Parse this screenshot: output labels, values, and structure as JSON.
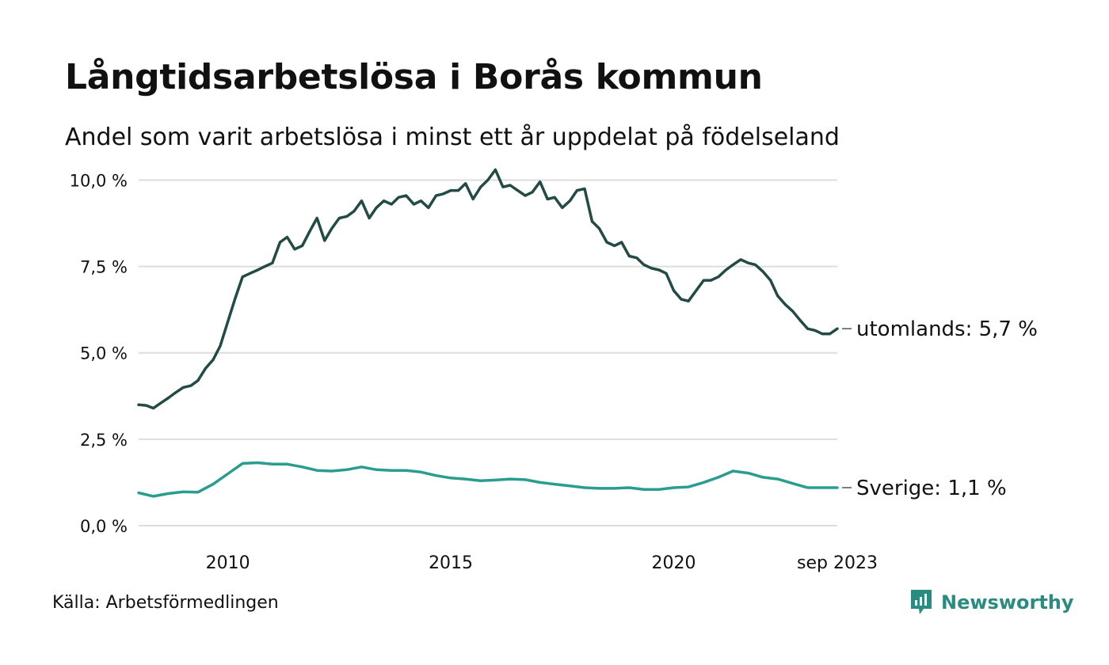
{
  "header": {
    "title": "Långtidsarbetslösa i Borås kommun",
    "subtitle": "Andel som varit arbetslösa i minst ett år uppdelat på födelseland"
  },
  "footer": {
    "source": "Källa: Arbetsförmedlingen",
    "brand": "Newsworthy",
    "brand_icon": "newsworthy-logo-icon"
  },
  "colors": {
    "utomlands": "#234b45",
    "sverige": "#2a9d8f",
    "grid": "#dddddd",
    "text": "#111111"
  },
  "chart_data": {
    "type": "line",
    "title": "Långtidsarbetslösa i Borås kommun",
    "xlabel": "",
    "ylabel": "",
    "x_range": [
      2008.0,
      2023.667
    ],
    "ylim": [
      0,
      10.4
    ],
    "y_ticks": [
      {
        "value": 0,
        "label": "0,0 %"
      },
      {
        "value": 2.5,
        "label": "2,5 %"
      },
      {
        "value": 5,
        "label": "5,0 %"
      },
      {
        "value": 7.5,
        "label": "7,5 %"
      },
      {
        "value": 10,
        "label": "10,0 %"
      }
    ],
    "x_ticks": [
      {
        "value": 2010,
        "label": "2010"
      },
      {
        "value": 2015,
        "label": "2015"
      },
      {
        "value": 2020,
        "label": "2020"
      },
      {
        "value": 2023.667,
        "label": "sep 2023"
      }
    ],
    "grid": true,
    "series": [
      {
        "name": "utomlands",
        "end_label": "utomlands: 5,7 %",
        "color": "#234b45",
        "points": [
          [
            2008.0,
            3.5
          ],
          [
            2008.17,
            3.48
          ],
          [
            2008.33,
            3.4
          ],
          [
            2008.5,
            3.55
          ],
          [
            2008.67,
            3.7
          ],
          [
            2008.83,
            3.85
          ],
          [
            2009.0,
            4.0
          ],
          [
            2009.17,
            4.05
          ],
          [
            2009.33,
            4.2
          ],
          [
            2009.5,
            4.55
          ],
          [
            2009.67,
            4.8
          ],
          [
            2009.83,
            5.2
          ],
          [
            2010.0,
            5.9
          ],
          [
            2010.17,
            6.6
          ],
          [
            2010.33,
            7.2
          ],
          [
            2010.5,
            7.3
          ],
          [
            2010.67,
            7.4
          ],
          [
            2010.83,
            7.5
          ],
          [
            2011.0,
            7.6
          ],
          [
            2011.17,
            8.2
          ],
          [
            2011.33,
            8.35
          ],
          [
            2011.5,
            8.0
          ],
          [
            2011.67,
            8.1
          ],
          [
            2011.83,
            8.5
          ],
          [
            2012.0,
            8.9
          ],
          [
            2012.17,
            8.25
          ],
          [
            2012.33,
            8.6
          ],
          [
            2012.5,
            8.9
          ],
          [
            2012.67,
            8.95
          ],
          [
            2012.83,
            9.1
          ],
          [
            2013.0,
            9.4
          ],
          [
            2013.17,
            8.9
          ],
          [
            2013.33,
            9.2
          ],
          [
            2013.5,
            9.4
          ],
          [
            2013.67,
            9.3
          ],
          [
            2013.83,
            9.5
          ],
          [
            2014.0,
            9.55
          ],
          [
            2014.17,
            9.3
          ],
          [
            2014.33,
            9.4
          ],
          [
            2014.5,
            9.2
          ],
          [
            2014.67,
            9.55
          ],
          [
            2014.83,
            9.6
          ],
          [
            2015.0,
            9.7
          ],
          [
            2015.17,
            9.7
          ],
          [
            2015.33,
            9.9
          ],
          [
            2015.5,
            9.45
          ],
          [
            2015.67,
            9.8
          ],
          [
            2015.83,
            10.0
          ],
          [
            2016.0,
            10.3
          ],
          [
            2016.17,
            9.8
          ],
          [
            2016.33,
            9.85
          ],
          [
            2016.5,
            9.7
          ],
          [
            2016.67,
            9.55
          ],
          [
            2016.83,
            9.65
          ],
          [
            2017.0,
            9.95
          ],
          [
            2017.17,
            9.45
          ],
          [
            2017.33,
            9.5
          ],
          [
            2017.5,
            9.2
          ],
          [
            2017.67,
            9.4
          ],
          [
            2017.83,
            9.7
          ],
          [
            2018.0,
            9.75
          ],
          [
            2018.17,
            8.8
          ],
          [
            2018.33,
            8.6
          ],
          [
            2018.5,
            8.2
          ],
          [
            2018.67,
            8.1
          ],
          [
            2018.83,
            8.2
          ],
          [
            2019.0,
            7.8
          ],
          [
            2019.17,
            7.75
          ],
          [
            2019.33,
            7.55
          ],
          [
            2019.5,
            7.45
          ],
          [
            2019.67,
            7.4
          ],
          [
            2019.83,
            7.3
          ],
          [
            2020.0,
            6.8
          ],
          [
            2020.17,
            6.55
          ],
          [
            2020.33,
            6.5
          ],
          [
            2020.5,
            6.8
          ],
          [
            2020.67,
            7.1
          ],
          [
            2020.83,
            7.1
          ],
          [
            2021.0,
            7.2
          ],
          [
            2021.17,
            7.4
          ],
          [
            2021.33,
            7.55
          ],
          [
            2021.5,
            7.7
          ],
          [
            2021.67,
            7.6
          ],
          [
            2021.83,
            7.55
          ],
          [
            2022.0,
            7.35
          ],
          [
            2022.17,
            7.1
          ],
          [
            2022.33,
            6.65
          ],
          [
            2022.5,
            6.4
          ],
          [
            2022.67,
            6.2
          ],
          [
            2022.83,
            5.95
          ],
          [
            2023.0,
            5.7
          ],
          [
            2023.17,
            5.65
          ],
          [
            2023.33,
            5.55
          ],
          [
            2023.5,
            5.55
          ],
          [
            2023.667,
            5.7
          ]
        ]
      },
      {
        "name": "Sverige",
        "end_label": "Sverige: 1,1 %",
        "color": "#2a9d8f",
        "points": [
          [
            2008.0,
            0.95
          ],
          [
            2008.33,
            0.85
          ],
          [
            2008.67,
            0.93
          ],
          [
            2009.0,
            0.98
          ],
          [
            2009.33,
            0.97
          ],
          [
            2009.67,
            1.2
          ],
          [
            2010.0,
            1.5
          ],
          [
            2010.33,
            1.8
          ],
          [
            2010.67,
            1.82
          ],
          [
            2011.0,
            1.78
          ],
          [
            2011.33,
            1.78
          ],
          [
            2011.67,
            1.7
          ],
          [
            2012.0,
            1.6
          ],
          [
            2012.33,
            1.58
          ],
          [
            2012.67,
            1.62
          ],
          [
            2013.0,
            1.7
          ],
          [
            2013.33,
            1.62
          ],
          [
            2013.67,
            1.6
          ],
          [
            2014.0,
            1.6
          ],
          [
            2014.33,
            1.55
          ],
          [
            2014.67,
            1.45
          ],
          [
            2015.0,
            1.38
          ],
          [
            2015.33,
            1.35
          ],
          [
            2015.67,
            1.3
          ],
          [
            2016.0,
            1.32
          ],
          [
            2016.33,
            1.35
          ],
          [
            2016.67,
            1.33
          ],
          [
            2017.0,
            1.25
          ],
          [
            2017.33,
            1.2
          ],
          [
            2017.67,
            1.15
          ],
          [
            2018.0,
            1.1
          ],
          [
            2018.33,
            1.08
          ],
          [
            2018.67,
            1.08
          ],
          [
            2019.0,
            1.1
          ],
          [
            2019.33,
            1.05
          ],
          [
            2019.67,
            1.05
          ],
          [
            2020.0,
            1.1
          ],
          [
            2020.33,
            1.12
          ],
          [
            2020.67,
            1.25
          ],
          [
            2021.0,
            1.4
          ],
          [
            2021.33,
            1.58
          ],
          [
            2021.67,
            1.52
          ],
          [
            2022.0,
            1.4
          ],
          [
            2022.33,
            1.35
          ],
          [
            2022.67,
            1.22
          ],
          [
            2023.0,
            1.1
          ],
          [
            2023.33,
            1.1
          ],
          [
            2023.667,
            1.1
          ]
        ]
      }
    ]
  }
}
